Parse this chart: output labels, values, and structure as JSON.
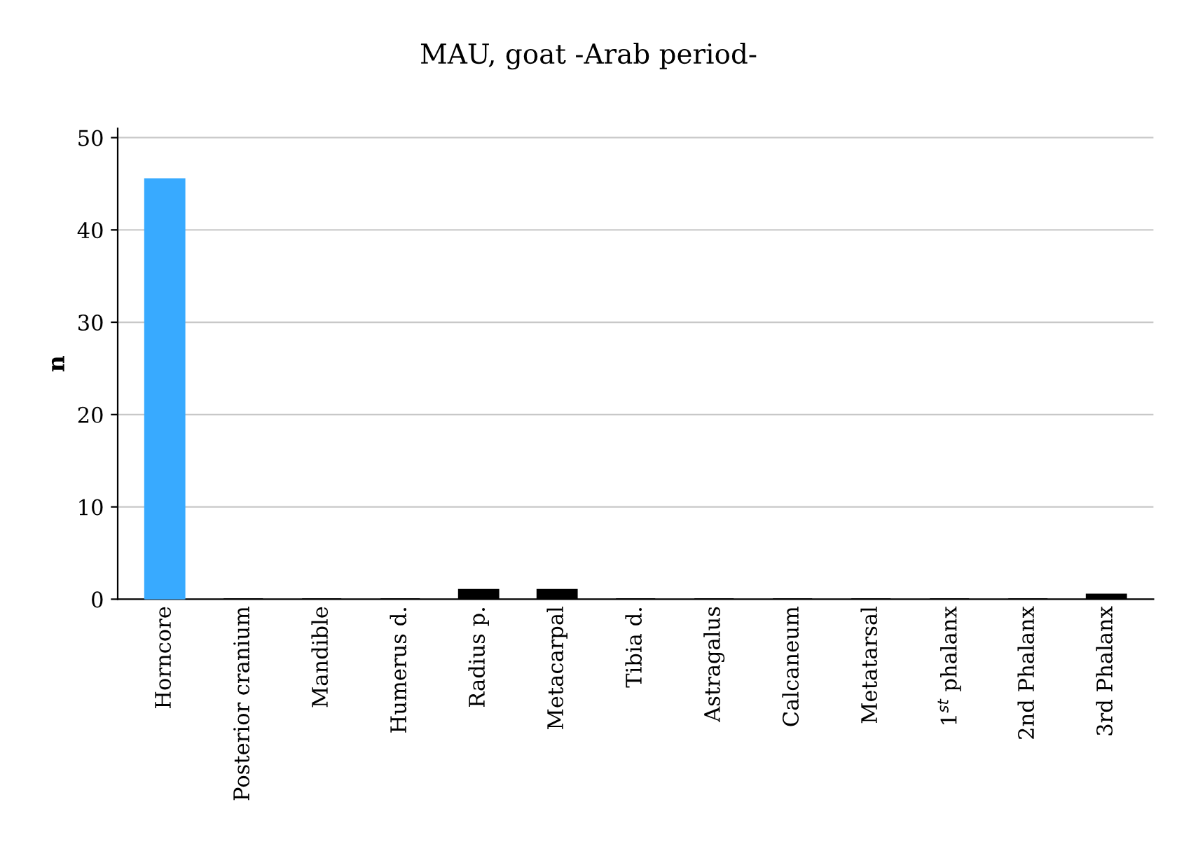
{
  "chart_data": {
    "type": "bar",
    "title": "MAU, goat -Arab period-",
    "ylabel": "n",
    "categories": [
      "Horncore",
      "Posterior cranium",
      "Mandible",
      "Humerus d.",
      "Radius p.",
      "Metacarpal",
      "Tibia d.",
      "Astragalus",
      "Calcaneum",
      "Metatarsal",
      "1$^{st}$ phalanx",
      "2nd Phalanx",
      "3rd Phalanx"
    ],
    "values": [
      45.5,
      0,
      0,
      0,
      1,
      1,
      0,
      0,
      0,
      0,
      0,
      0,
      0.5
    ],
    "colors": [
      "#38aaff",
      "#000000",
      "#000000",
      "#000000",
      "#000000",
      "#000000",
      "#000000",
      "#000000",
      "#000000",
      "#000000",
      "#000000",
      "#000000",
      "#000000"
    ],
    "ylim": [
      0,
      51
    ],
    "yticks": [
      0,
      10,
      20,
      30,
      40,
      50
    ],
    "grid": "y"
  }
}
